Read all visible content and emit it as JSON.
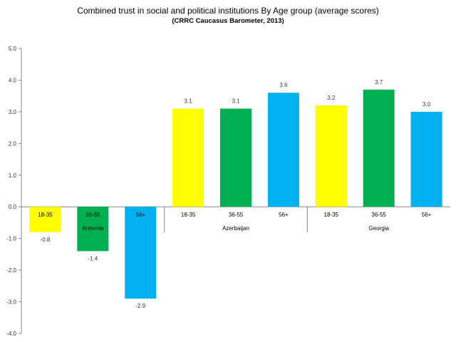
{
  "chart_data": {
    "type": "bar",
    "title": "Combined trust in social and political institutions By Age group (average scores)",
    "subtitle": "(CRRC Caucasus Barometer, 2013)",
    "ylim": [
      -4.0,
      5.0
    ],
    "yticks": [
      "5.0",
      "4.0",
      "3.0",
      "2.0",
      "1.0",
      "0.0",
      "-1.0",
      "-2.0",
      "-3.0",
      "-4.0"
    ],
    "grid": false,
    "legend": "none",
    "groups": [
      {
        "name": "Armenia",
        "bars": [
          {
            "category": "18-35",
            "value": -0.8,
            "label": "-0.8",
            "color": "#ffff00"
          },
          {
            "category": "36-55",
            "value": -1.4,
            "label": "-1.4",
            "color": "#00b050"
          },
          {
            "category": "56+",
            "value": -2.9,
            "label": "-2.9",
            "color": "#00b0f0"
          }
        ]
      },
      {
        "name": "Azerbaijan",
        "bars": [
          {
            "category": "18-35",
            "value": 3.1,
            "label": "3.1",
            "color": "#ffff00"
          },
          {
            "category": "36-55",
            "value": 3.1,
            "label": "3.1",
            "color": "#00b050"
          },
          {
            "category": "56+",
            "value": 3.6,
            "label": "3.6",
            "color": "#00b0f0"
          }
        ]
      },
      {
        "name": "Georgia",
        "bars": [
          {
            "category": "18-35",
            "value": 3.2,
            "label": "3.2",
            "color": "#ffff00"
          },
          {
            "category": "36-55",
            "value": 3.7,
            "label": "3.7",
            "color": "#00b050"
          },
          {
            "category": "56+",
            "value": 3.0,
            "label": "3.0",
            "color": "#00b0f0"
          }
        ]
      }
    ]
  }
}
